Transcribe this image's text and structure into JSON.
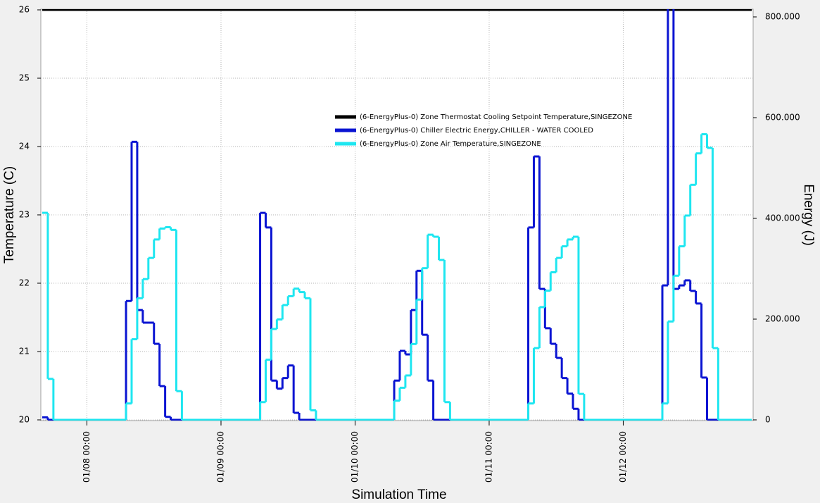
{
  "chart_data": {
    "type": "step-line",
    "xlabel": "Simulation Time",
    "ylabel": "Temperature (C)",
    "y2label": "Energy (J)",
    "xlim": [
      "01/07 16:00",
      "01/12 23:00"
    ],
    "xticks": [
      "01/08 00:00",
      "01/09 00:00",
      "01/10 00:00",
      "01/11 00:00",
      "01/12 00:00"
    ],
    "ylim": [
      20,
      26
    ],
    "yticks": [
      20,
      21,
      22,
      23,
      24,
      25,
      26
    ],
    "y2lim": [
      0,
      814
    ],
    "y2ticks": [
      0,
      {
        "value": 200,
        "label": "200.000"
      },
      {
        "value": 400,
        "label": "400.000"
      },
      {
        "value": 600,
        "label": "600.000"
      },
      {
        "value": 800,
        "label": "800.000"
      }
    ],
    "grid": true,
    "series": [
      {
        "name": "(6-EnergyPlus-0) Zone Thermostat Cooling Setpoint Temperature,SINGEZONE",
        "color": "#000000",
        "axis": "y",
        "x": [
          "01/07 16:00",
          "01/12 23:00"
        ],
        "values": [
          26,
          26
        ]
      },
      {
        "name": "(6-EnergyPlus-0) Chiller Electric Energy,CHILLER - WATER COOLED",
        "color": "#0a14d2",
        "axis": "y2",
        "x": [
          "01/07 16:00",
          "01/07 17:00",
          "01/08 07:00",
          "01/08 08:00",
          "01/08 09:00",
          "01/08 10:00",
          "01/08 12:00",
          "01/08 13:00",
          "01/08 14:00",
          "01/08 15:00",
          "01/09 07:00",
          "01/09 08:00",
          "01/09 09:00",
          "01/09 10:00",
          "01/09 11:00",
          "01/09 12:00",
          "01/09 13:00",
          "01/09 14:00",
          "01/10 07:00",
          "01/10 08:00",
          "01/10 09:00",
          "01/10 10:00",
          "01/10 11:00",
          "01/10 12:00",
          "01/10 13:00",
          "01/10 14:00",
          "01/11 07:00",
          "01/11 08:00",
          "01/11 09:00",
          "01/11 10:00",
          "01/11 11:00",
          "01/11 12:00",
          "01/11 13:00",
          "01/11 14:00",
          "01/11 15:00",
          "01/11 16:00",
          "01/12 07:00",
          "01/12 08:00",
          "01/12 09:00",
          "01/12 10:00",
          "01/12 11:00",
          "01/12 12:00",
          "01/12 13:00",
          "01/12 14:00",
          "01/12 15:00",
          "01/12 23:00"
        ],
        "values": [
          5,
          0,
          236,
          552,
          218,
          193,
          151,
          67,
          6,
          0,
          411,
          382,
          78,
          62,
          83,
          108,
          14,
          0,
          78,
          137,
          130,
          218,
          296,
          169,
          78,
          0,
          382,
          523,
          260,
          182,
          151,
          123,
          83,
          52,
          22,
          0,
          267,
          830,
          260,
          267,
          277,
          256,
          231,
          84,
          0,
          0
        ]
      },
      {
        "name": "(6-EnergyPlus-0) Zone Air Temperature,SINGEZONE",
        "color": "#1ee6f0",
        "axis": "y",
        "x": [
          "01/07 16:00",
          "01/07 17:00",
          "01/07 18:00",
          "01/08 07:00",
          "01/08 08:00",
          "01/08 09:00",
          "01/08 10:00",
          "01/08 11:00",
          "01/08 12:00",
          "01/08 13:00",
          "01/08 14:00",
          "01/08 15:00",
          "01/08 16:00",
          "01/08 17:00",
          "01/09 07:00",
          "01/09 08:00",
          "01/09 09:00",
          "01/09 10:00",
          "01/09 11:00",
          "01/09 12:00",
          "01/09 13:00",
          "01/09 14:00",
          "01/09 15:00",
          "01/09 16:00",
          "01/09 17:00",
          "01/10 07:00",
          "01/10 08:00",
          "01/10 09:00",
          "01/10 10:00",
          "01/10 11:00",
          "01/10 12:00",
          "01/10 13:00",
          "01/10 14:00",
          "01/10 15:00",
          "01/10 16:00",
          "01/10 17:00",
          "01/11 07:00",
          "01/11 08:00",
          "01/11 09:00",
          "01/11 10:00",
          "01/11 11:00",
          "01/11 12:00",
          "01/11 13:00",
          "01/11 14:00",
          "01/11 15:00",
          "01/11 16:00",
          "01/11 17:00",
          "01/12 07:00",
          "01/12 08:00",
          "01/12 09:00",
          "01/12 10:00",
          "01/12 11:00",
          "01/12 12:00",
          "01/12 13:00",
          "01/12 14:00",
          "01/12 15:00",
          "01/12 16:00",
          "01/12 17:00",
          "01/12 23:00"
        ],
        "values": [
          23.03,
          20.6,
          20,
          20.24,
          21.18,
          21.78,
          22.06,
          22.37,
          22.64,
          22.8,
          22.82,
          22.78,
          20.42,
          20,
          20.26,
          20.88,
          21.33,
          21.47,
          21.68,
          21.81,
          21.92,
          21.87,
          21.78,
          20.14,
          20,
          20.28,
          20.47,
          20.65,
          21.11,
          21.76,
          22.22,
          22.71,
          22.68,
          22.34,
          20.26,
          20,
          20.24,
          21.05,
          21.65,
          21.89,
          22.16,
          22.37,
          22.54,
          22.64,
          22.68,
          20.38,
          20,
          20.24,
          21.44,
          22.11,
          22.54,
          22.99,
          23.44,
          23.9,
          24.18,
          23.98,
          21.05,
          20,
          20
        ]
      }
    ]
  }
}
